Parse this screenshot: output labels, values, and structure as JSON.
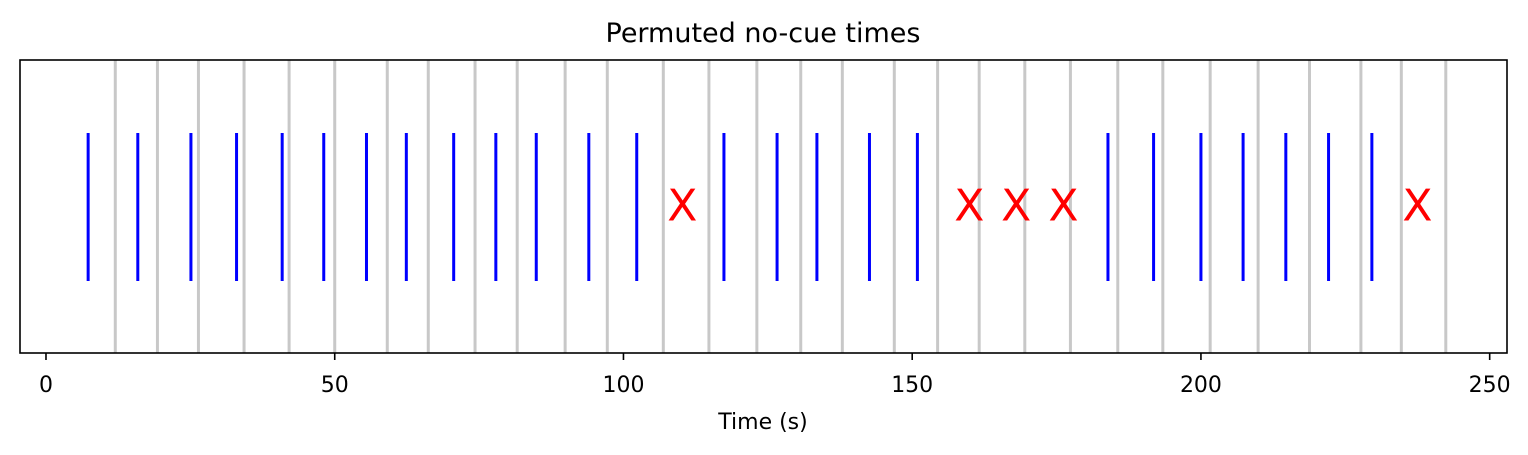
{
  "chart_data": {
    "type": "event-raster",
    "title": "Permuted no-cue times",
    "xlabel": "Time (s)",
    "ylabel": "",
    "xlim": [
      -4.5,
      253
    ],
    "xticks": [
      0,
      50,
      100,
      150,
      200,
      250
    ],
    "xtick_labels": [
      "0",
      "50",
      "100",
      "150",
      "200",
      "250"
    ],
    "y_axis_visible": false,
    "grid": false,
    "series": [
      {
        "mark": "gray-vertical-line",
        "x": [
          12.0,
          19.3,
          26.4,
          34.3,
          42.1,
          50.0,
          59.1,
          66.2,
          74.3,
          81.6,
          89.9,
          97.2,
          106.9,
          114.8,
          123.1,
          130.7,
          137.9,
          146.9,
          154.4,
          161.6,
          169.5,
          177.4,
          185.6,
          193.4,
          201.6,
          209.9,
          218.8,
          227.7,
          234.7,
          242.4
        ],
        "color": "#c8c8c8"
      },
      {
        "mark": "blue-event-line",
        "x": [
          7.3,
          15.9,
          25.1,
          33.0,
          40.9,
          48.1,
          55.5,
          62.4,
          70.6,
          77.9,
          84.9,
          94.0,
          102.3,
          117.4,
          126.6,
          133.5,
          142.6,
          150.9,
          183.9,
          191.8,
          200.0,
          207.3,
          214.7,
          222.1,
          229.6
        ],
        "color": "#0000ff"
      },
      {
        "mark": "red-x",
        "x": [
          110.2,
          159.9,
          168.0,
          176.2,
          237.5
        ],
        "labels": [
          "X",
          "X",
          "X",
          "X",
          "X"
        ],
        "color": "#ff0000"
      }
    ]
  }
}
